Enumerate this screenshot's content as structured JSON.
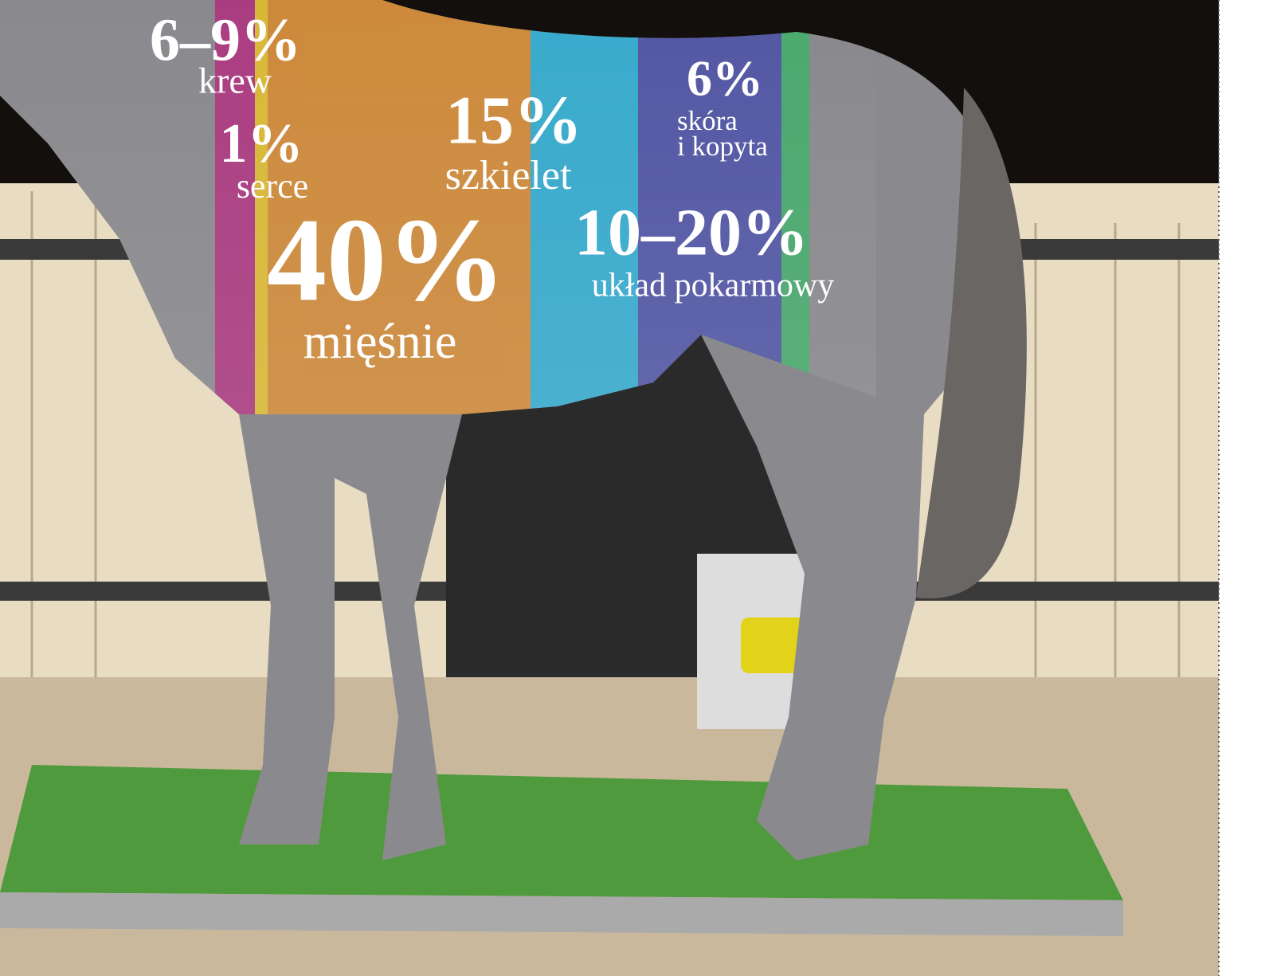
{
  "labels": [
    {
      "value": "6–9%",
      "name": "krew"
    },
    {
      "value": "1%",
      "name": "serce"
    },
    {
      "value": "40%",
      "name": "mięśnie"
    },
    {
      "value": "15%",
      "name": "szkielet"
    },
    {
      "value": "6%",
      "name": [
        "skóra",
        "i kopyta"
      ]
    },
    {
      "value": "10–20%",
      "name": "układ pokarmowy"
    }
  ]
}
